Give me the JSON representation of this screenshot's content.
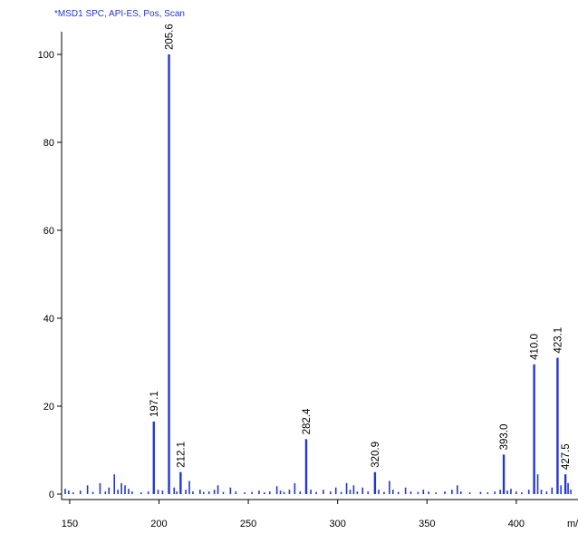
{
  "chart_data": {
    "type": "bar",
    "title": "*MSD1 SPC, API-ES, Pos, Scan",
    "xlabel": "m/z",
    "ylabel": "",
    "xlim": [
      146,
      431
    ],
    "ylim": [
      0,
      104
    ],
    "xticks": [
      150,
      200,
      250,
      300,
      350,
      400
    ],
    "yticks": [
      0,
      20,
      40,
      60,
      80,
      100
    ],
    "grid": false,
    "colors": {
      "bar": "#2236d8",
      "axis": "#000000",
      "title": "#2236d8"
    },
    "labeled_peaks": [
      {
        "x": 197.1,
        "y": 16.5,
        "label": "197.1"
      },
      {
        "x": 205.6,
        "y": 100,
        "label": "205.6"
      },
      {
        "x": 212.1,
        "y": 5,
        "label": "212.1"
      },
      {
        "x": 282.4,
        "y": 12.5,
        "label": "282.4"
      },
      {
        "x": 320.9,
        "y": 5,
        "label": "320.9"
      },
      {
        "x": 393.0,
        "y": 9,
        "label": "393.0"
      },
      {
        "x": 410.0,
        "y": 29.5,
        "label": "410.0"
      },
      {
        "x": 423.1,
        "y": 31,
        "label": "423.1"
      },
      {
        "x": 427.5,
        "y": 4.5,
        "label": "427.5"
      }
    ],
    "minor_peaks": [
      [
        147.5,
        1.2
      ],
      [
        149.5,
        0.8
      ],
      [
        152,
        0.4
      ],
      [
        156,
        0.8
      ],
      [
        160,
        2.0
      ],
      [
        163,
        0.5
      ],
      [
        167,
        2.5
      ],
      [
        170,
        0.6
      ],
      [
        172,
        1.5
      ],
      [
        175,
        4.5
      ],
      [
        177,
        1.0
      ],
      [
        179,
        2.5
      ],
      [
        181,
        2.0
      ],
      [
        183,
        1.2
      ],
      [
        185,
        0.6
      ],
      [
        190,
        0.4
      ],
      [
        194,
        0.6
      ],
      [
        199.5,
        1.0
      ],
      [
        202,
        0.8
      ],
      [
        208.5,
        1.5
      ],
      [
        210,
        0.6
      ],
      [
        215,
        1.0
      ],
      [
        217,
        3.0
      ],
      [
        219,
        0.6
      ],
      [
        223,
        1.0
      ],
      [
        225,
        0.5
      ],
      [
        228,
        0.6
      ],
      [
        231,
        1.0
      ],
      [
        233,
        2.0
      ],
      [
        236,
        0.5
      ],
      [
        240,
        1.5
      ],
      [
        243,
        0.6
      ],
      [
        248,
        0.4
      ],
      [
        252,
        0.5
      ],
      [
        256,
        0.8
      ],
      [
        259,
        0.4
      ],
      [
        262,
        0.6
      ],
      [
        266,
        1.8
      ],
      [
        268,
        0.8
      ],
      [
        270,
        0.5
      ],
      [
        273,
        1.0
      ],
      [
        276,
        2.5
      ],
      [
        279,
        0.6
      ],
      [
        285,
        1.0
      ],
      [
        288,
        0.5
      ],
      [
        292,
        1.0
      ],
      [
        296,
        0.6
      ],
      [
        299,
        1.5
      ],
      [
        302,
        0.5
      ],
      [
        305,
        2.5
      ],
      [
        307,
        1.0
      ],
      [
        309,
        2.0
      ],
      [
        311,
        0.6
      ],
      [
        314,
        1.5
      ],
      [
        317,
        0.6
      ],
      [
        323,
        1.0
      ],
      [
        326,
        0.5
      ],
      [
        329,
        3.0
      ],
      [
        331,
        1.0
      ],
      [
        334,
        0.5
      ],
      [
        338,
        1.5
      ],
      [
        341,
        0.6
      ],
      [
        345,
        0.5
      ],
      [
        348,
        1.0
      ],
      [
        351,
        0.6
      ],
      [
        355,
        0.4
      ],
      [
        360,
        0.6
      ],
      [
        364,
        1.0
      ],
      [
        367,
        2.0
      ],
      [
        369,
        0.6
      ],
      [
        374,
        0.4
      ],
      [
        380,
        0.5
      ],
      [
        384,
        0.4
      ],
      [
        388,
        0.6
      ],
      [
        391,
        1.0
      ],
      [
        395,
        0.8
      ],
      [
        397,
        1.2
      ],
      [
        400,
        0.6
      ],
      [
        403,
        0.4
      ],
      [
        407,
        1.0
      ],
      [
        412,
        4.5
      ],
      [
        414,
        1.0
      ],
      [
        417,
        0.6
      ],
      [
        420,
        1.5
      ],
      [
        425,
        2.0
      ],
      [
        429,
        2.5
      ],
      [
        430.5,
        1.0
      ]
    ]
  }
}
